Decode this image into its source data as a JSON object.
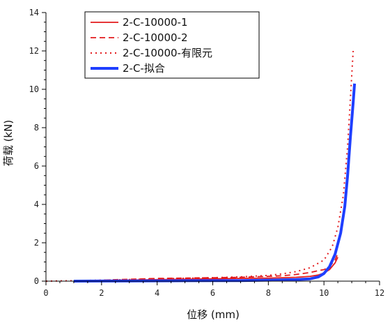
{
  "chart_data": {
    "type": "line",
    "xlabel": "位移 (mm)",
    "ylabel": "荷载 (kN)",
    "xlim": [
      0,
      12
    ],
    "ylim": [
      0,
      14
    ],
    "x_ticks": [
      0,
      2,
      4,
      6,
      8,
      10,
      12
    ],
    "y_ticks": [
      0,
      2,
      4,
      6,
      8,
      10,
      12,
      14
    ],
    "grid": false,
    "legend_position": "top-left",
    "series": [
      {
        "name": "2-C-10000-1",
        "color": "#e31a1c",
        "style": "solid",
        "points": [
          [
            1.1,
            0.0
          ],
          [
            2,
            0.03
          ],
          [
            3,
            0.06
          ],
          [
            4,
            0.08
          ],
          [
            5,
            0.1
          ],
          [
            6,
            0.12
          ],
          [
            7,
            0.14
          ],
          [
            8,
            0.16
          ],
          [
            8.5,
            0.18
          ],
          [
            9,
            0.2
          ],
          [
            9.5,
            0.25
          ],
          [
            9.8,
            0.32
          ],
          [
            10,
            0.42
          ],
          [
            10.2,
            0.6
          ],
          [
            10.4,
            0.95
          ],
          [
            10.5,
            1.25
          ]
        ]
      },
      {
        "name": "2-C-10000-2",
        "color": "#e31a1c",
        "style": "dashed",
        "points": [
          [
            1.1,
            0.0
          ],
          [
            2,
            0.05
          ],
          [
            3,
            0.1
          ],
          [
            4,
            0.14
          ],
          [
            5,
            0.16
          ],
          [
            6,
            0.18
          ],
          [
            7,
            0.2
          ],
          [
            8,
            0.25
          ],
          [
            8.5,
            0.28
          ],
          [
            9,
            0.35
          ],
          [
            9.5,
            0.45
          ],
          [
            9.8,
            0.55
          ],
          [
            10,
            0.6
          ],
          [
            10.2,
            0.75
          ],
          [
            10.4,
            1.1
          ],
          [
            10.5,
            1.45
          ]
        ]
      },
      {
        "name": "2-C-10000-有限元",
        "color": "#e31a1c",
        "style": "dotted",
        "points": [
          [
            0,
            0.0
          ],
          [
            1,
            0.02
          ],
          [
            2,
            0.05
          ],
          [
            3,
            0.08
          ],
          [
            4,
            0.12
          ],
          [
            5,
            0.15
          ],
          [
            6,
            0.18
          ],
          [
            7,
            0.22
          ],
          [
            8,
            0.3
          ],
          [
            8.5,
            0.38
          ],
          [
            9,
            0.5
          ],
          [
            9.5,
            0.7
          ],
          [
            10,
            1.1
          ],
          [
            10.3,
            1.8
          ],
          [
            10.5,
            2.8
          ],
          [
            10.7,
            4.5
          ],
          [
            10.85,
            7.0
          ],
          [
            10.95,
            9.5
          ],
          [
            11.05,
            12.0
          ]
        ]
      },
      {
        "name": "2-C-拟合",
        "color": "#1f3fff",
        "style": "solid-thick",
        "points": [
          [
            1.0,
            0.0
          ],
          [
            3,
            0.01
          ],
          [
            5,
            0.02
          ],
          [
            7,
            0.03
          ],
          [
            8,
            0.05
          ],
          [
            9,
            0.08
          ],
          [
            9.5,
            0.12
          ],
          [
            9.8,
            0.22
          ],
          [
            10.0,
            0.4
          ],
          [
            10.2,
            0.75
          ],
          [
            10.4,
            1.4
          ],
          [
            10.6,
            2.5
          ],
          [
            10.75,
            3.9
          ],
          [
            10.85,
            5.5
          ],
          [
            10.95,
            7.5
          ],
          [
            11.05,
            9.3
          ],
          [
            11.1,
            10.3
          ]
        ]
      }
    ]
  }
}
